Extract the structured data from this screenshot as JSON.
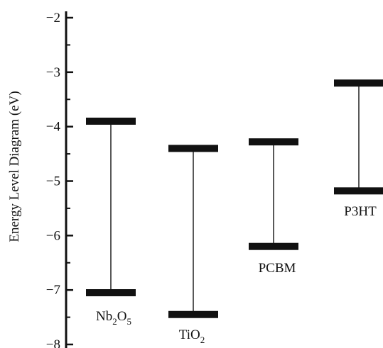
{
  "chart_data": {
    "type": "energy-level-diagram",
    "ylabel": "Energy Level Diagram (eV)",
    "ylim": [
      -8,
      -2
    ],
    "y_ticks": [
      {
        "value": -2,
        "label": "−2"
      },
      {
        "value": -3,
        "label": "−3"
      },
      {
        "value": -4,
        "label": "−4"
      },
      {
        "value": -5,
        "label": "−5"
      },
      {
        "value": -6,
        "label": "−6"
      },
      {
        "value": -7,
        "label": "−7"
      },
      {
        "value": -8,
        "label": "−8"
      }
    ],
    "grid": false,
    "legend": "none",
    "colors": {
      "axis": "#111111",
      "levels": "#111111",
      "connector": "#222222"
    },
    "materials": [
      {
        "label_parts": [
          {
            "text": "Nb",
            "sub": false
          },
          {
            "text": "2",
            "sub": true
          },
          {
            "text": "O",
            "sub": false
          },
          {
            "text": "5",
            "sub": true
          }
        ],
        "top": -3.9,
        "bottom": -7.05
      },
      {
        "label_parts": [
          {
            "text": "TiO",
            "sub": false
          },
          {
            "text": "2",
            "sub": true
          }
        ],
        "top": -4.4,
        "bottom": -7.45
      },
      {
        "label_parts": [
          {
            "text": "PCBM",
            "sub": false
          }
        ],
        "top": -4.28,
        "bottom": -6.2
      },
      {
        "label_parts": [
          {
            "text": "P3HT",
            "sub": false
          }
        ],
        "top": -3.2,
        "bottom": -5.18
      }
    ]
  }
}
